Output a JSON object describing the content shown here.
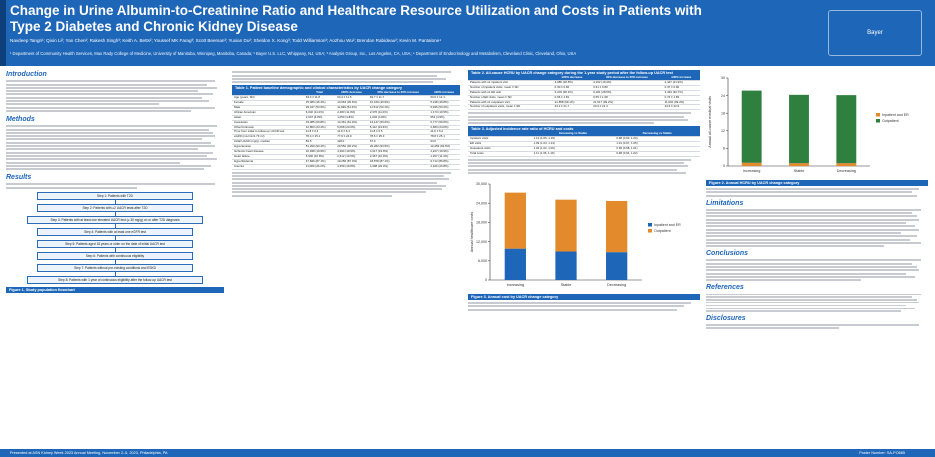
{
  "header": {
    "title_line1": "Change in Urine Albumin-to-Creatinine Ratio and Healthcare Resource Utilization and Costs in Patients with",
    "title_line2": "Type 2 Diabetes and Chronic Kidney Disease",
    "authors": "Navdeep Tangri¹; Qixin Li²; Yan Chen²; Rakesh Singh³; Keith A. Betts²; Youssef MK Farag³; Scott Beeman³; Yuxian Du²; Sheldon X. Kong³; Todd Williamson³; Aozhou Wu²; Brendan Rabideau²; Kevin M. Pantalone⁴",
    "affiliations": "¹ Department of Community Health Services, Max Rady College of Medicine, University of Manitoba, Winnipeg, Manitoba, Canada; ² Bayer U.S. LLC, Whippany, NJ, USA; ³ Analysis Group, Inc., Los Angeles, CA, USA; ⁴ Department of Endocrinology and Metabolism, Cleveland Clinic, Cleveland, Ohio, USA"
  },
  "sections": {
    "introduction": "Introduction",
    "methods": "Methods",
    "results": "Results",
    "limitations": "Limitations",
    "conclusions": "Conclusions",
    "references": "References",
    "disclosures": "Disclosures"
  },
  "flow": [
    "Step 1: Patients with T2D",
    "Step 2: Patients with ≥2 UACR tests after T2D",
    "Step 3: Patients with at least one elevated UACR test (≥ 30 mg/g) on or after T2D diagnosis",
    "Step 4: Patients with at least one eGFR test",
    "Step 5: Patients aged 18 years or older on the date of initial UACR test",
    "Step 6: Patients with continuous eligibility",
    "Step 7: Patients without pre-existing conditions and ESKD",
    "Step 8: Patients with 1 year of continuous eligibility after the follow-up UACR test"
  ],
  "figures": {
    "fig1": "Figure 1. Study population flowchart",
    "fig2": "Figure 2. Annual HCRU by UACR change category",
    "fig3": "Figure 3. Annual cost by UACR change category"
  },
  "tables": {
    "table1": "Table 1. Patient baseline demographic and clinical characteristics by UACR change category",
    "table2": "Table 2. All-cause HCRU by UACR change category during the 1-year study period after the follow-up UACR test",
    "table3": "Table 3. Adjusted incidence rate ratio of HCRU and costs"
  },
  "table1_head": [
    "",
    "Total",
    "≥30% decrease",
    "30% decrease to 30% increase",
    "≥30% increase"
  ],
  "table1_rows": [
    [
      "Age (years, SD)",
      "63.4 ± 11.8",
      "63.4 ± 11.6",
      "63.7 ± 11.7",
      "63.0 ± 12.1"
    ],
    [
      "Female",
      "25,480 (46.4%)",
      "10,063 (45.6%)",
      "10,169 (46.9%)",
      "5,248 (46.8%)"
    ],
    [
      "Male",
      "29,447 (53.6%)",
      "11,999 (54.4%)",
      "11,512 (53.1%)",
      "5,936 (53.2%)"
    ],
    [
      "African American",
      "6,032 (11.0%)",
      "2,483 (11.3%)",
      "2,376 (11.0%)",
      "1,173 (10.5%)"
    ],
    [
      "Asian",
      "2,647 (4.8%)",
      "1,050 (4.8%)",
      "1,046 (4.8%)",
      "551 (4.9%)"
    ],
    [
      "Caucasian",
      "33,385 (60.8%)",
      "13,461 (61.0%)",
      "13,147 (60.6%)",
      "6,777 (60.6%)"
    ],
    [
      "Other/Unknown",
      "12,863 (23.4%)",
      "5,068 (23.0%)",
      "5,112 (23.6%)",
      "2,683 (24.0%)"
    ],
    [
      "Time from initial to follow-up UACR test",
      "11.8 ± 6.4",
      "11.9 ± 6.4",
      "11.8 ± 6.5",
      "11.6 ± 6.2"
    ],
    [
      "eGFR (mL/min/1.73 m²)",
      "78.4 ± 25.1",
      "77.9 ± 24.9",
      "78.6 ± 25.3",
      "78.8 ± 25.1"
    ],
    [
      "Initial UACR (mg/g), median",
      "83.5",
      "118.0",
      "67.0",
      "54.0"
    ],
    [
      "Hypertension",
      "51,293 (93.4%)",
      "20,552 (93.2%)",
      "20,282 (93.5%)",
      "10,459 (93.5%)"
    ],
    [
      "Ischemic heart disease",
      "10,938 (19.9%)",
      "4,394 (19.9%)",
      "4,317 (19.9%)",
      "2,227 (19.9%)"
    ],
    [
      "Heart failure",
      "5,946 (10.8%)",
      "2,312 (10.5%)",
      "2,367 (10.9%)",
      "1,267 (11.3%)"
    ],
    [
      "Hyperlipidemia",
      "47,846 (87.1%)",
      "19,256 (87.3%)",
      "18,878 (87.1%)",
      "9,712 (86.8%)"
    ],
    [
      "Anemia",
      "11,083 (20.2%)",
      "4,359 (19.8%)",
      "4,398 (20.3%)",
      "2,326 (20.8%)"
    ]
  ],
  "table2_head": [
    "",
    "≥30% decrease",
    "30% decrease to 30% increase",
    "≥30% increase"
  ],
  "table2_rows": [
    [
      "Patients with ≥1 inpatient visit",
      "4,085 (18.5%)",
      "4,192 (19.3%)",
      "2,447 (21.9%)"
    ],
    [
      "Number of inpatient visits, mean ± SD",
      "0.30 ± 0.82",
      "0.31 ± 0.80",
      "0.37 ± 0.90"
    ],
    [
      "Patients with ≥1 ED visit",
      "6,203 (28.1%)",
      "6,181 (28.5%)",
      "3,433 (30.7%)"
    ],
    [
      "Number of ED visits, mean ± SD",
      "0.66 ± 1.81",
      "0.65 ± 1.68",
      "0.74 ± 1.83"
    ],
    [
      "Patients with ≥1 outpatient visit",
      "21,858 (99.1%)",
      "21,517 (99.2%)",
      "11,091 (99.2%)"
    ],
    [
      "Number of outpatient visits, mean ± SD",
      "23.2 ± 21.7",
      "23.3 ± 21.4",
      "24.6 ± 22.9"
    ]
  ],
  "table3_head": [
    "",
    "Increasing vs Stable",
    "Decreasing vs Stable"
  ],
  "table3_rows": [
    [
      "Inpatient visits",
      "1.12 (1.06, 1.19)",
      "0.98 (0.93, 1.03)"
    ],
    [
      "ED visits",
      "1.09 (1.04, 1.14)",
      "1.01 (0.97, 1.05)"
    ],
    [
      "Outpatient visits",
      "1.04 (1.02, 1.06)",
      "0.99 (0.98, 1.01)"
    ],
    [
      "Total costs",
      "1.11 (1.06, 1.16)",
      "0.98 (0.94, 1.02)"
    ]
  ],
  "chart_data": [
    {
      "type": "bar",
      "title": "",
      "ylabel": "Annual all-cause medical visits",
      "categories": [
        "Increasing",
        "Stable",
        "Decreasing"
      ],
      "series": [
        {
          "name": "Inpatient and ER",
          "values": [
            1.1,
            0.96,
            0.96
          ]
        },
        {
          "name": "Outpatient",
          "values": [
            24.6,
            23.3,
            23.2
          ]
        }
      ],
      "ylim": [
        0,
        30
      ],
      "legend": "right",
      "colors": [
        "#e38a2c",
        "#2f7f3f"
      ]
    },
    {
      "type": "bar",
      "title": "",
      "ylabel": "Annual healthcare costs",
      "categories": [
        "Increasing",
        "Stable",
        "Decreasing"
      ],
      "series": [
        {
          "name": "Inpatient and ER",
          "values": [
            9800,
            8900,
            8700
          ]
        },
        {
          "name": "Outpatient",
          "values": [
            17500,
            16200,
            16000
          ]
        }
      ],
      "ylim": [
        0,
        30000
      ],
      "legend": "right",
      "colors": [
        "#1e66b8",
        "#e38a2c"
      ]
    }
  ],
  "footer": {
    "left": "Presented at ASN Kidney Week 2023 Annual Meeting, November 2–5, 2023, Philadelphia, PA",
    "right": "Poster Number: SA-PO685"
  },
  "logo_text": "Bayer"
}
